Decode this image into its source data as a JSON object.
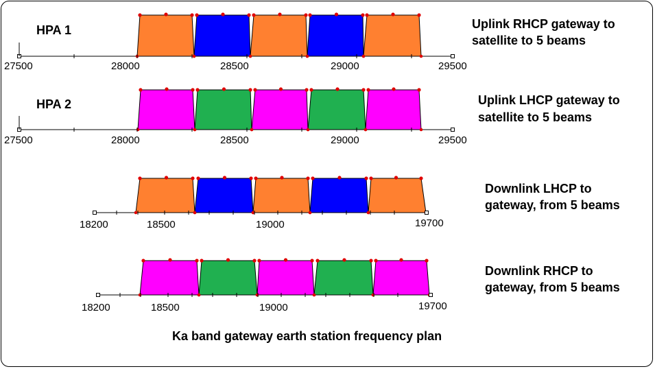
{
  "colors": {
    "orange": "#ff8030",
    "blue": "#0000ff",
    "magenta": "#ff00ff",
    "green": "#20b050",
    "dot": "#e00000"
  },
  "footer": "Ka band gateway earth station frequency plan",
  "rows": [
    {
      "name": "hpa1",
      "hpa_label": "HPA 1",
      "side_label": [
        "Uplink RHCP gateway to",
        "satellite to 5 beams"
      ],
      "axis_ticks": [
        "27500",
        "28000",
        "28500",
        "29000",
        "29500"
      ],
      "axis_range": [
        27500,
        29500
      ],
      "band_colors": [
        "orange",
        "blue",
        "orange",
        "blue",
        "orange"
      ]
    },
    {
      "name": "hpa2",
      "hpa_label": "HPA 2",
      "side_label": [
        "Uplink LHCP gateway to",
        "satellite to 5 beams"
      ],
      "axis_ticks": [
        "27500",
        "28000",
        "28500",
        "29000",
        "29500"
      ],
      "axis_range": [
        27500,
        29500
      ],
      "band_colors": [
        "magenta",
        "green",
        "magenta",
        "green",
        "magenta"
      ]
    },
    {
      "name": "downlink-lhcp",
      "hpa_label": "",
      "side_label": [
        "Downlink LHCP to",
        "gateway, from 5 beams"
      ],
      "axis_ticks": [
        "18200",
        "18500",
        "19000",
        "19700"
      ],
      "axis_range": [
        18200,
        19700
      ],
      "band_colors": [
        "orange",
        "blue",
        "orange",
        "blue",
        "orange"
      ]
    },
    {
      "name": "downlink-rhcp",
      "hpa_label": "",
      "side_label": [
        "Downlink RHCP to",
        "gateway, from 5 beams"
      ],
      "axis_ticks": [
        "18200",
        "18500",
        "19000",
        "19700"
      ],
      "axis_range": [
        18200,
        19700
      ],
      "band_colors": [
        "magenta",
        "green",
        "magenta",
        "green",
        "magenta"
      ]
    }
  ]
}
